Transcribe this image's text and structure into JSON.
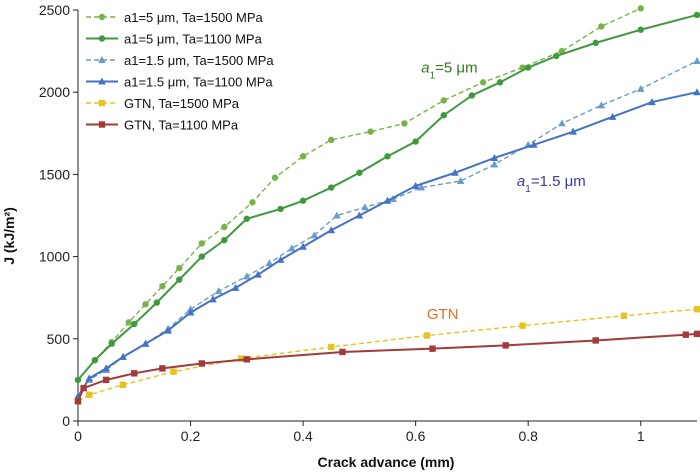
{
  "chart_data": {
    "type": "line",
    "xlabel": "Crack advance (mm)",
    "ylabel": "J (kJ/m²)",
    "xlim": [
      0,
      1.1
    ],
    "ylim": [
      0,
      2500
    ],
    "xticks": [
      "0",
      "0.2",
      "0.4",
      "0.6",
      "0.8",
      "1"
    ],
    "xtick_values": [
      0,
      0.2,
      0.4,
      0.6,
      0.8,
      1.0
    ],
    "yticks": [
      "0",
      "500",
      "1000",
      "1500",
      "2000",
      "2500"
    ],
    "ytick_values": [
      0,
      500,
      1000,
      1500,
      2000,
      2500
    ],
    "grid": false,
    "legend_position": "top-left",
    "series": [
      {
        "name": "a1=5 μm, Ta=1500 MPa",
        "color": "#79b24b",
        "dash": "dashed",
        "marker": "circle",
        "x": [
          0,
          0.03,
          0.06,
          0.09,
          0.12,
          0.15,
          0.18,
          0.22,
          0.26,
          0.31,
          0.35,
          0.4,
          0.45,
          0.52,
          0.58,
          0.65,
          0.72,
          0.79,
          0.86,
          0.93,
          1.0
        ],
        "y": [
          250,
          370,
          480,
          600,
          710,
          820,
          930,
          1080,
          1180,
          1330,
          1480,
          1610,
          1710,
          1760,
          1810,
          1950,
          2060,
          2150,
          2250,
          2400,
          2510
        ]
      },
      {
        "name": "a1=5 μm, Ta=1100 MPa",
        "color": "#3f9a3f",
        "dash": "solid",
        "marker": "circle",
        "x": [
          0,
          0.03,
          0.06,
          0.1,
          0.14,
          0.18,
          0.22,
          0.26,
          0.3,
          0.36,
          0.4,
          0.45,
          0.5,
          0.55,
          0.6,
          0.65,
          0.7,
          0.75,
          0.8,
          0.85,
          0.92,
          1.0,
          1.1
        ],
        "y": [
          250,
          370,
          470,
          590,
          720,
          860,
          1000,
          1100,
          1230,
          1290,
          1340,
          1420,
          1510,
          1610,
          1700,
          1860,
          1980,
          2060,
          2150,
          2220,
          2300,
          2380,
          2470
        ]
      },
      {
        "name": "a1=1.5 μm, Ta=1500 MPa",
        "color": "#6a9cc9",
        "dash": "dashed",
        "marker": "triangle",
        "x": [
          0,
          0.02,
          0.05,
          0.08,
          0.12,
          0.16,
          0.2,
          0.25,
          0.3,
          0.34,
          0.38,
          0.42,
          0.46,
          0.51,
          0.56,
          0.61,
          0.68,
          0.74,
          0.8,
          0.86,
          0.93,
          1.0,
          1.1
        ],
        "y": [
          150,
          250,
          310,
          390,
          470,
          560,
          680,
          790,
          880,
          960,
          1050,
          1130,
          1250,
          1300,
          1350,
          1420,
          1460,
          1560,
          1680,
          1810,
          1920,
          2020,
          2190
        ]
      },
      {
        "name": "a1=1.5 μm, Ta=1100 MPa",
        "color": "#4472c4",
        "dash": "solid",
        "marker": "triangle",
        "x": [
          0,
          0.02,
          0.05,
          0.08,
          0.12,
          0.16,
          0.2,
          0.24,
          0.28,
          0.32,
          0.36,
          0.4,
          0.45,
          0.5,
          0.55,
          0.6,
          0.67,
          0.74,
          0.81,
          0.88,
          0.95,
          1.02,
          1.1
        ],
        "y": [
          150,
          260,
          320,
          390,
          470,
          550,
          660,
          740,
          810,
          890,
          980,
          1060,
          1160,
          1250,
          1340,
          1430,
          1510,
          1600,
          1680,
          1760,
          1850,
          1940,
          2000
        ]
      },
      {
        "name": "GTN, Ta=1500 MPa",
        "color": "#e8c221",
        "dash": "dashed",
        "marker": "square",
        "x": [
          0,
          0.02,
          0.08,
          0.17,
          0.29,
          0.45,
          0.62,
          0.79,
          0.97,
          1.1
        ],
        "y": [
          120,
          160,
          220,
          300,
          380,
          450,
          520,
          580,
          640,
          680
        ]
      },
      {
        "name": "GTN, Ta=1100 MPa",
        "color": "#a23b3b",
        "dash": "solid",
        "marker": "square",
        "x": [
          0,
          0.01,
          0.05,
          0.1,
          0.15,
          0.22,
          0.3,
          0.47,
          0.63,
          0.76,
          0.92,
          1.08,
          1.1
        ],
        "y": [
          120,
          200,
          250,
          290,
          320,
          350,
          375,
          420,
          440,
          460,
          490,
          525,
          530
        ]
      }
    ],
    "annotations": [
      {
        "text": "a1=5 μm",
        "main": "a",
        "sub": "1",
        "rest": "=5 μm",
        "x": 0.61,
        "y": 2120,
        "color": "#2e7d1e"
      },
      {
        "text": "a1=1.5 μm",
        "main": "a",
        "sub": "1",
        "rest": "=1.5 μm",
        "x": 0.78,
        "y": 1430,
        "color": "#3b3b9a"
      },
      {
        "text": "GTN",
        "main": "GTN",
        "sub": "",
        "rest": "",
        "x": 0.62,
        "y": 620,
        "color": "#e07020"
      }
    ]
  }
}
